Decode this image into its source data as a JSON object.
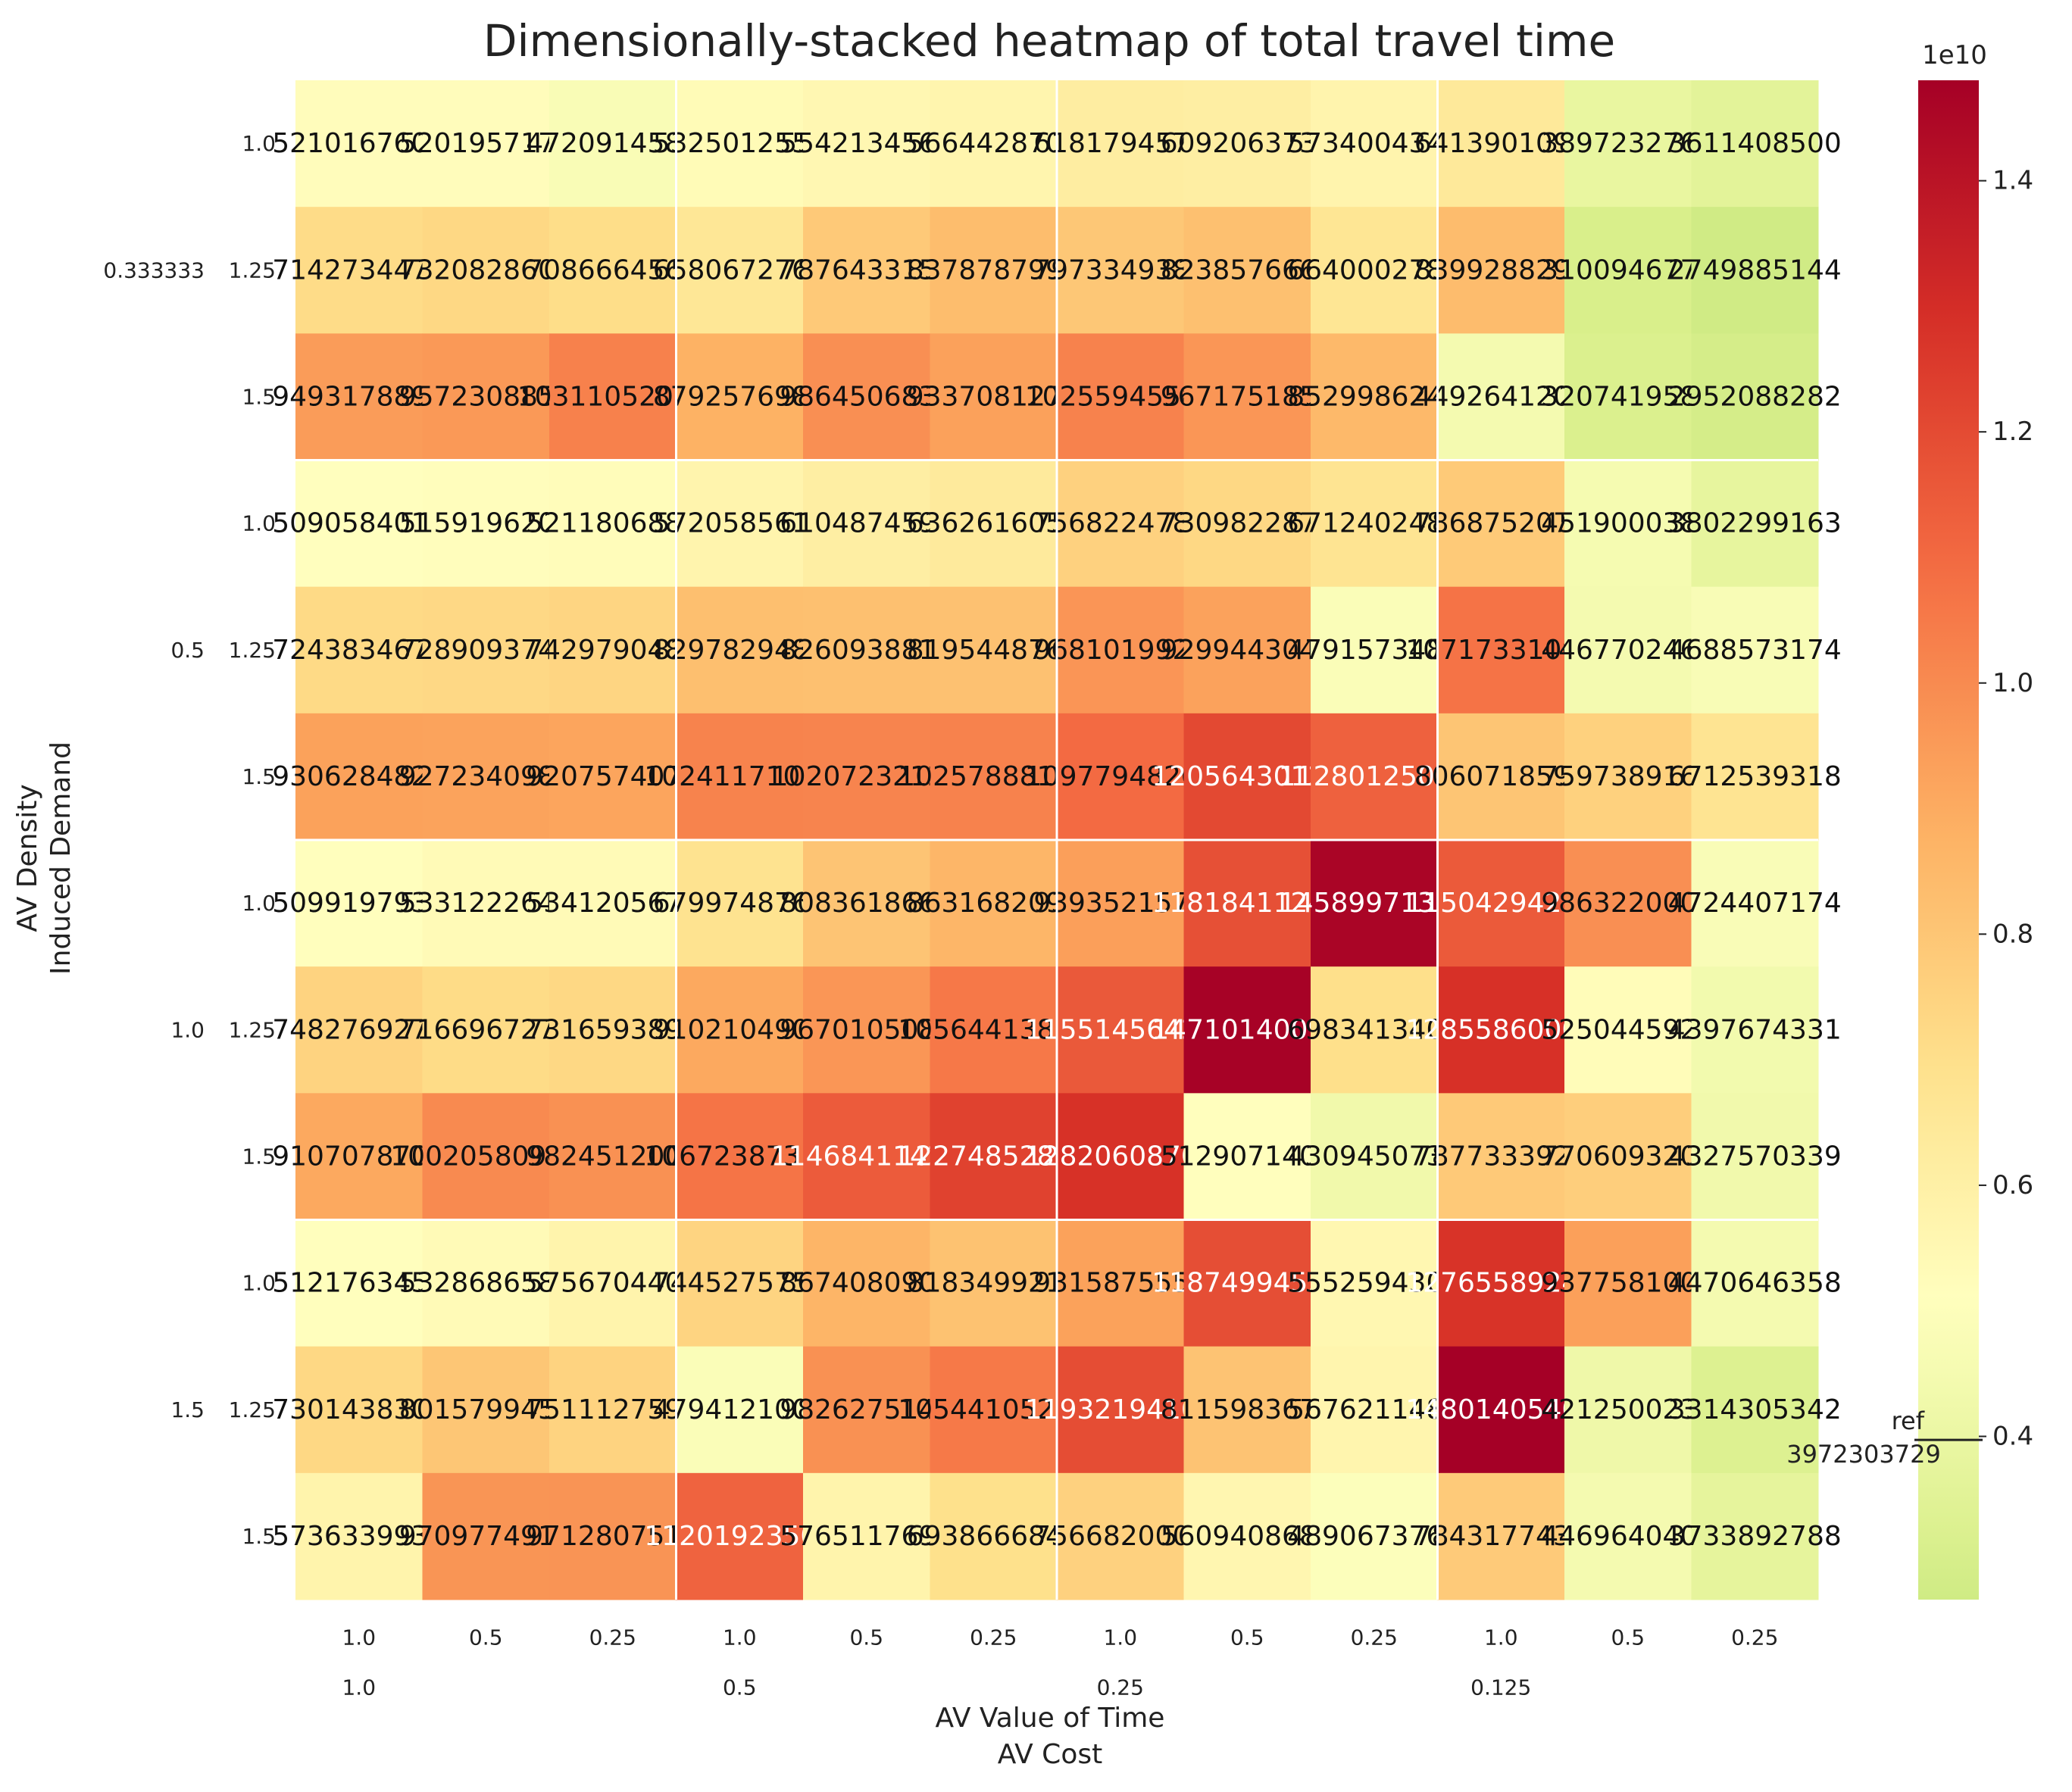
{
  "chart_data": {
    "type": "heatmap",
    "title": "Dimensionally-stacked heatmap of total travel time",
    "x_axis": {
      "inner_label": "AV Value of Time",
      "outer_label": "AV Cost",
      "outer_ticks": [
        "1.0",
        "0.5",
        "0.25",
        "0.125"
      ],
      "inner_ticks": [
        "1.0",
        "0.5",
        "0.25"
      ]
    },
    "y_axis": {
      "outer_label": "AV Density",
      "inner_label": "Induced Demand",
      "outer_ticks": [
        "0.333333",
        "0.5",
        "1.0",
        "1.5"
      ],
      "inner_ticks": [
        "1.0",
        "1.25",
        "1.5"
      ]
    },
    "rows": [
      {
        "av_density": "0.333333",
        "induced_demand": "1.0",
        "values": [
          5210167607,
          5201957172,
          4720914580,
          5325012558,
          5542134564,
          5664428708,
          6181794570,
          6092063730,
          5734004348,
          6413901097,
          3897232761,
          3611408500
        ],
        "labels": [
          "5210167607",
          "5201957172",
          "4720914580",
          "5325012558",
          "5542134564",
          "5664428708",
          "6181794570",
          "6092063730",
          "5734004348",
          "6413901097",
          "3897232761",
          "3611408500"
        ]
      },
      {
        "av_density": "0.333333",
        "induced_demand": "1.25",
        "values": [
          7142734470,
          7320828603,
          7086664565,
          6580672767,
          7876433157,
          8378787997,
          7973349382,
          8238576664,
          6640002789,
          8399288291,
          3100946778,
          2749885144
        ],
        "labels": [
          "7142734470",
          "7320828603",
          "7086664565",
          "6580672767",
          "7876433157",
          "8378787997",
          "7973349382",
          "8238576664",
          "6640002789",
          "8399288291",
          "3100946778",
          "2749885144"
        ]
      },
      {
        "av_density": "0.333333",
        "induced_demand": "1.5",
        "values": [
          9493178890,
          9572308853,
          10311052000,
          8792576980,
          9864506830,
          9337081270,
          10255945580,
          9671751850,
          8529986244,
          4492641207,
          3207419585,
          2952088282
        ],
        "labels": [
          "9493178890",
          "9572308853",
          "10311052000",
          "8792576980",
          "9864506830",
          "9337081270",
          "10255945580",
          "9671751850",
          "8529986244",
          "4492641207",
          "3207419585",
          "2952088282"
        ]
      },
      {
        "av_density": "0.5",
        "induced_demand": "1.0",
        "values": [
          5090584015,
          5159196200,
          5211806887,
          5720585610,
          6104874592,
          6362616058,
          7568224780,
          7309822871,
          6712402487,
          7868752075,
          4519000380,
          3802299163
        ],
        "labels": [
          "5090584015",
          "5159196200",
          "5211806887",
          "5720585610",
          "6104874592",
          "6362616058",
          "7568224780",
          "7309822871",
          "6712402487",
          "7868752075",
          "4519000380",
          "3802299163"
        ]
      },
      {
        "av_density": "0.5",
        "induced_demand": "1.25",
        "values": [
          7243834672,
          7289093742,
          7429790482,
          8297829482,
          8260938811,
          8195448760,
          9681019929,
          9299443047,
          4791573480,
          10717331000,
          4467702462,
          4688573174
        ],
        "labels": [
          "7243834672",
          "7289093742",
          "7429790482",
          "8297829482",
          "8260938811",
          "8195448760",
          "9681019929",
          "9299443047",
          "4791573480",
          "10717331000",
          "4467702462",
          "4688573174"
        ]
      },
      {
        "av_density": "0.5",
        "induced_demand": "1.5",
        "values": [
          9306284827,
          9272340982,
          9207574072,
          10241171002,
          10207232125,
          10257888109,
          10977948205,
          12056430128,
          11280125000,
          8060718599,
          7597389168,
          6712539318
        ],
        "labels": [
          "9306284827",
          "9272340982",
          "9207574072",
          "10241171002",
          "10207232125",
          "10257888109",
          "10977948205",
          "12056430128",
          "11280125000",
          "8060718599",
          "7597389168",
          "6712539318"
        ]
      },
      {
        "av_density": "1.0",
        "induced_demand": "1.0",
        "values": [
          5099197933,
          5331222645,
          5341205670,
          6799748769,
          8083618669,
          8631682098,
          9393521579,
          11818411245,
          14589971380,
          11504294218,
          9863220000,
          4724407174
        ],
        "labels": [
          "5099197933",
          "5331222645",
          "5341205670",
          "6799748769",
          "8083618669",
          "8631682098",
          "9393521579",
          "11818411245",
          "14589971380",
          "11504294218",
          "9863220000",
          "4724407174"
        ]
      },
      {
        "av_density": "1.0",
        "induced_demand": "1.25",
        "values": [
          7482769276,
          7166967273,
          7316593890,
          9102104906,
          9670105083,
          10564413855,
          11551456423,
          14710140098,
          6983413400,
          12855860000,
          5250445929,
          4397674331
        ],
        "labels": [
          "7482769276",
          "7166967273",
          "7316593890",
          "9102104906",
          "9670105083",
          "10564413855",
          "11551456423",
          "14710140098",
          "6983413400",
          "12855860000",
          "5250445929",
          "4397674331"
        ]
      },
      {
        "av_density": "1.0",
        "induced_demand": "1.5",
        "values": [
          9107078700,
          10020580962,
          9824512000,
          10672387313,
          11468411422,
          12274852821,
          12820608700,
          5129071403,
          4309450734,
          7877333927,
          7706093200,
          4327570339
        ],
        "labels": [
          "9107078700",
          "10020580962",
          "9824512000",
          "10672387313",
          "11468411422",
          "12274852821",
          "12820608700",
          "5129071403",
          "4309450734",
          "7877333927",
          "7706093200",
          "4327570339"
        ]
      },
      {
        "av_density": "1.5",
        "induced_demand": "1.0",
        "values": [
          5121763453,
          5328686587,
          5756704400,
          7445275756,
          8674080906,
          8183499210,
          9315875558,
          11874994550,
          5552594300,
          12765589240,
          9377581000,
          4470646358
        ],
        "labels": [
          "5121763453",
          "5328686587",
          "5756704400",
          "7445275756",
          "8674080906",
          "8183499210",
          "9315875558",
          "11874994550",
          "5552594300",
          "12765589240",
          "9377581000",
          "4470646358"
        ]
      },
      {
        "av_density": "1.5",
        "induced_demand": "1.25",
        "values": [
          7301438302,
          8015799453,
          7511127599,
          4794121000,
          9826275140,
          10544105292,
          11932194100,
          8115983676,
          5676211480,
          14801405400,
          4212500235,
          3314305342
        ],
        "labels": [
          "7301438302",
          "8015799453",
          "7511127599",
          "4794121000",
          "9826275140",
          "10544105292",
          "11932194100",
          "8115983676",
          "5676211480",
          "14801405400",
          "4212500235",
          "3314305342"
        ]
      },
      {
        "av_density": "1.5",
        "induced_demand": "1.5",
        "values": [
          5736339937,
          9709774912,
          9712807510,
          11201923500,
          5765117692,
          6938666845,
          7566820000,
          5609408680,
          4890673764,
          7843177437,
          4469640400,
          3733892788
        ],
        "labels": [
          "5736339937",
          "9709774912",
          "9712807510",
          "11201923500",
          "5765117692",
          "6938666845",
          "7566820000",
          "5609408680",
          "4890673764",
          "7843177437",
          "4469640400",
          "3733892788"
        ]
      }
    ],
    "colorbar": {
      "colormap": "RdYlGn_r",
      "vmin": 2700000000,
      "vmax": 14800000000,
      "tick_values": [
        4000000000,
        6000000000,
        8000000000,
        10000000000,
        12000000000,
        14000000000
      ],
      "tick_labels": [
        "0.4",
        "0.6",
        "0.8",
        "1.0",
        "1.2",
        "1.4"
      ],
      "scale_label": "1e10",
      "reference": {
        "value": 3972303729,
        "label": "ref",
        "value_label": "3972303729"
      }
    },
    "grid": false
  }
}
